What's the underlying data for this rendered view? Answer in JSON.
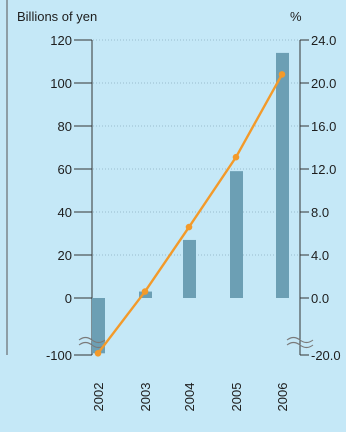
{
  "chart_data": {
    "type": "bar+line",
    "categories": [
      "2002",
      "2003",
      "2004",
      "2005",
      "2006"
    ],
    "series": [
      {
        "kind": "bar",
        "axis": "left",
        "values": [
          -97,
          3,
          27,
          59,
          114
        ],
        "color": "#6c9fb4"
      },
      {
        "kind": "line",
        "axis": "right",
        "values": [
          -19.4,
          0.6,
          6.6,
          13.1,
          20.8
        ],
        "color": "#f39a2a"
      }
    ],
    "left_axis": {
      "label": "Billions of yen",
      "ticks": [
        "120",
        "100",
        "80",
        "60",
        "40",
        "20",
        "0",
        "-100"
      ],
      "tick_values": [
        120,
        100,
        80,
        60,
        40,
        20,
        0,
        -100
      ],
      "range": [
        -100,
        120
      ],
      "break": true
    },
    "right_axis": {
      "label": "%",
      "ticks": [
        "24.0",
        "20.0",
        "16.0",
        "12.0",
        "8.0",
        "4.0",
        "0.0",
        "-20.0"
      ],
      "tick_values": [
        24,
        20,
        16,
        12,
        8,
        4,
        0,
        -20
      ],
      "range": [
        -20,
        24
      ],
      "break": true
    },
    "dotted_gridlines": true
  }
}
